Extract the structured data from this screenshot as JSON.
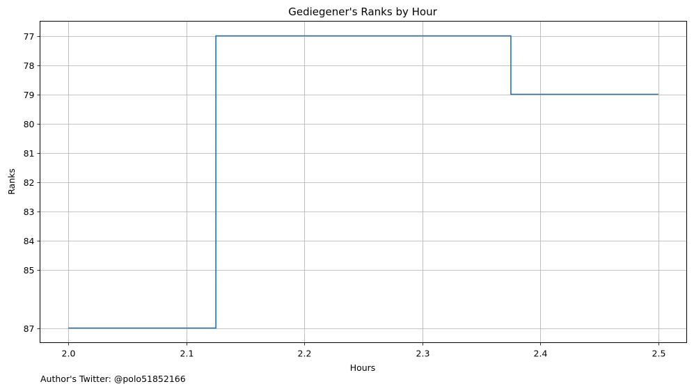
{
  "chart_data": {
    "type": "line",
    "drawstyle": "steps-post",
    "title": "Gediegener's Ranks by Hour",
    "xlabel": "Hours",
    "ylabel": "Ranks",
    "xlim": [
      1.976,
      2.524
    ],
    "ylim": [
      87.5,
      76.5
    ],
    "y_inverted": true,
    "grid": true,
    "x_ticks": [
      2.0,
      2.1,
      2.2,
      2.3,
      2.4,
      2.5
    ],
    "x_tick_labels": [
      "2.0",
      "2.1",
      "2.2",
      "2.3",
      "2.4",
      "2.5"
    ],
    "y_ticks": [
      77,
      78,
      79,
      80,
      81,
      82,
      83,
      84,
      85,
      87
    ],
    "y_tick_labels": [
      "77",
      "78",
      "79",
      "80",
      "81",
      "82",
      "83",
      "84",
      "85",
      "87"
    ],
    "series": [
      {
        "name": "Ranks",
        "color": "#1f77b4",
        "x": [
          2.0,
          2.125,
          2.375,
          2.5
        ],
        "y": [
          87,
          77,
          79,
          79
        ]
      }
    ]
  },
  "footer": {
    "text": "Author's Twitter: @polo51852166"
  },
  "colors": {
    "grid": "#b0b0b0",
    "axes": "#000000",
    "line": "#1f77b4",
    "background": "#ffffff"
  }
}
